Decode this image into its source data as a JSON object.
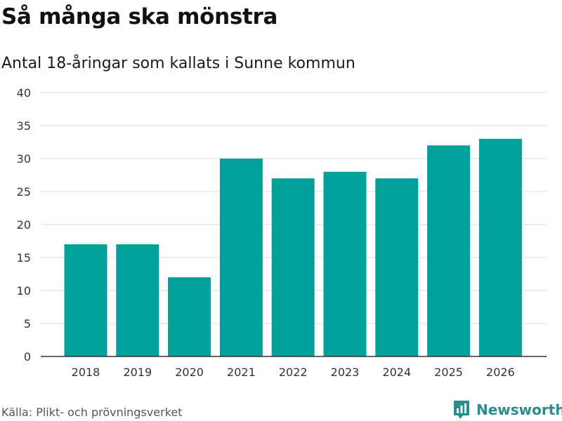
{
  "chart_data": {
    "type": "bar",
    "title": "Så många ska mönstra",
    "subtitle": "Antal 18-åringar som kallats i Sunne kommun",
    "categories": [
      "2018",
      "2019",
      "2020",
      "2021",
      "2022",
      "2023",
      "2024",
      "2025",
      "2026"
    ],
    "values": [
      17,
      17,
      12,
      30,
      27,
      28,
      27,
      32,
      33
    ],
    "ylim": [
      0,
      40
    ],
    "yticks": [
      0,
      5,
      10,
      15,
      20,
      25,
      30,
      35,
      40
    ],
    "xlabel": "",
    "ylabel": "",
    "grid": true,
    "bar_color": "#00a19a"
  },
  "footer": {
    "source": "Källa: Plikt- och prövningsverket",
    "brand": "Newsworthy",
    "brand_icon": "bar-chart-icon",
    "brand_color": "#2d8a8f"
  }
}
